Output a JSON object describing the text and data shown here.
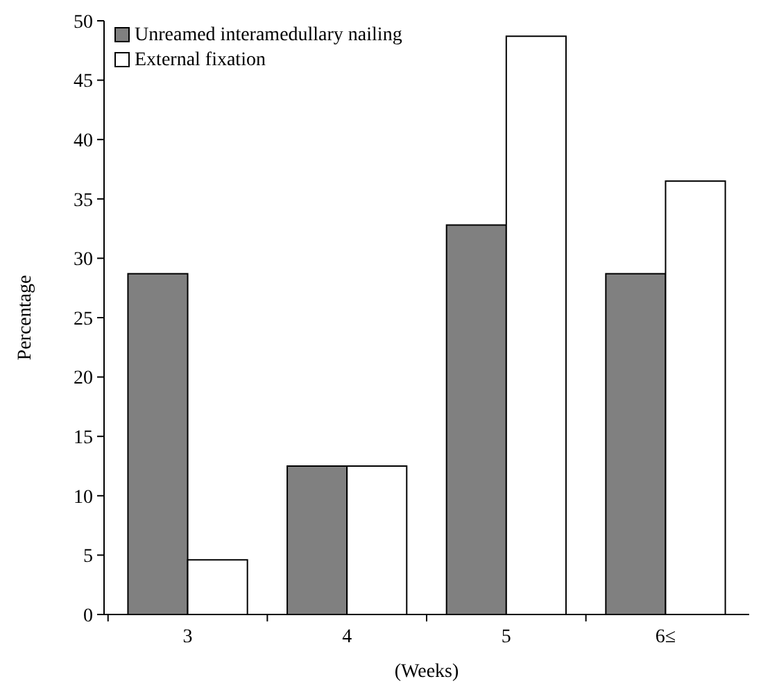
{
  "chart_data": {
    "type": "bar",
    "categories": [
      "3",
      "4",
      "5",
      "6≤"
    ],
    "series": [
      {
        "name": "Unreamed interamedullary nailing",
        "color": "#808080",
        "values": [
          28.7,
          12.5,
          32.8,
          28.7
        ]
      },
      {
        "name": "External fixation",
        "color": "#ffffff",
        "values": [
          4.6,
          12.5,
          48.7,
          36.5
        ]
      }
    ],
    "xlabel": "(Weeks)",
    "ylabel": "Percentage",
    "ylim": [
      0,
      50
    ],
    "yticks": [
      0,
      5,
      10,
      15,
      20,
      25,
      30,
      35,
      40,
      45,
      50
    ],
    "legend": "top left",
    "grid": false
  }
}
